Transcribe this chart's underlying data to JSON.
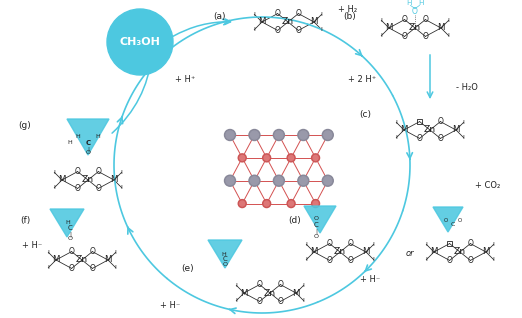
{
  "bg_color": "#ffffff",
  "cyan": "#4dc8e0",
  "black": "#222222",
  "red": "#cc3333",
  "gray_atom": "#888888",
  "dark_atom": "#555555",
  "figsize": [
    5.22,
    3.18
  ],
  "dpi": 100,
  "labels": [
    "(a)",
    "(b)",
    "(c)",
    "(d)",
    "(e)",
    "(f)",
    "(g)"
  ],
  "rxn_texts": {
    "ab": "+ H₂",
    "bc_left": "+ 2 H⁺",
    "bc_right": "- H₂O",
    "cd": "+ CO₂",
    "de": "+ H⁻",
    "ef": "+ H⁻",
    "fg": "+ H⁻",
    "ga": "+ H⁺"
  },
  "ch3oh": "CH₃OH",
  "or": "or"
}
